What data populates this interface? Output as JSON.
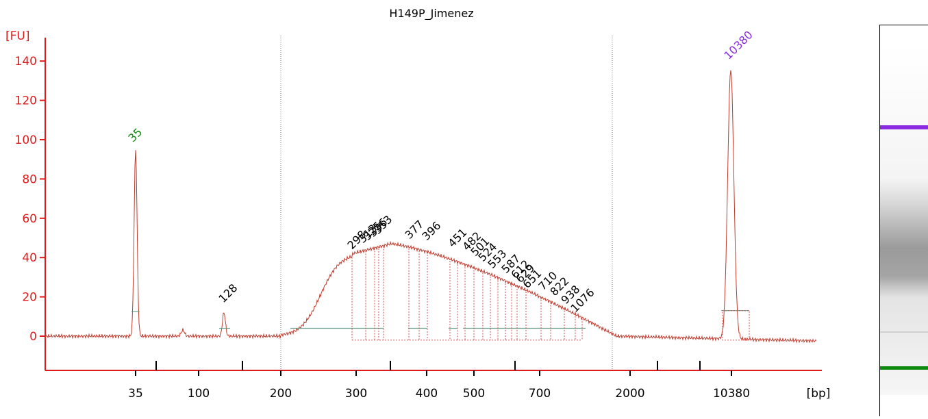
{
  "chart_data": {
    "type": "line",
    "title": "H149P_Jimenez",
    "ylabel": "[FU]",
    "xlabel": "[bp]",
    "ylim": [
      -19,
      150
    ],
    "yticks": [
      0,
      20,
      40,
      60,
      80,
      100,
      120,
      140
    ],
    "xtick_labels": [
      "35",
      "100",
      "200",
      "300",
      "400",
      "500",
      "700",
      "2000",
      "10380"
    ],
    "minor_tick_count": 7,
    "grid": false,
    "colors": {
      "axis": "#e01a1a",
      "trace": "#c0392b",
      "region": "#d24a4a",
      "baseline": "#6a9f8a",
      "lower_marker": "#0d8a0d",
      "upper_marker": "#8a2be2",
      "label": "#000000"
    },
    "series": [
      {
        "x_bp": [
          35,
          128,
          10380
        ],
        "y_fu": [
          95,
          12,
          137
        ]
      }
    ],
    "markers": [
      {
        "label": "35",
        "bp": 35,
        "fu": 95,
        "color": "#0d8a0d"
      },
      {
        "label": "10380",
        "bp": 10380,
        "fu": 137,
        "color": "#8a2be2"
      }
    ],
    "peak_labels": [
      "128",
      "298",
      "313",
      "325",
      "336",
      "353",
      "377",
      "396",
      "451",
      "482",
      "501",
      "524",
      "553",
      "587",
      "612",
      "629",
      "651",
      "710",
      "822",
      "938",
      "1076"
    ],
    "smear_region_bp": [
      200,
      1076
    ]
  }
}
